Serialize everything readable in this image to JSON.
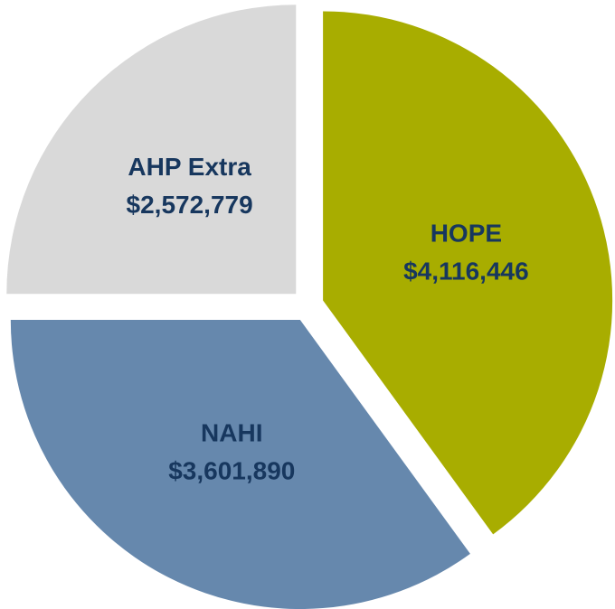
{
  "chart_data": {
    "type": "pie",
    "categories": [
      "HOPE",
      "NAHI",
      "AHP Extra"
    ],
    "values": [
      4116446,
      3601890,
      2572779
    ],
    "value_labels": [
      "$4,116,446",
      "$3,601,890",
      "$2,572,779"
    ],
    "colors": [
      "#a8ad00",
      "#6688ad",
      "#d9d9d9"
    ]
  }
}
